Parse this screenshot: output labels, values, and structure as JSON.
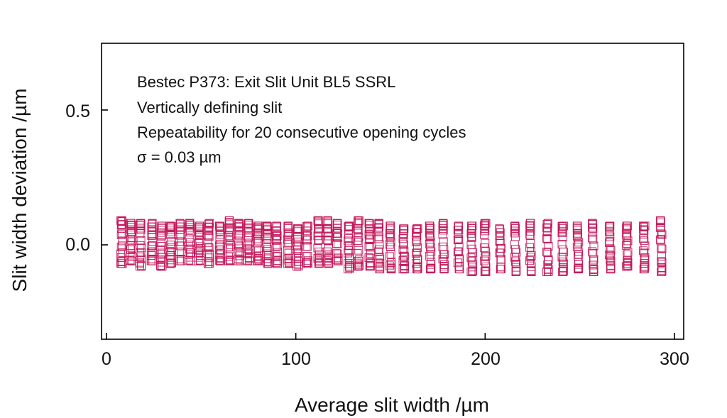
{
  "chart_data": {
    "type": "scatter",
    "marker": "open-square",
    "marker_color": "#c2185b",
    "xlabel": "Average slit width /µm",
    "ylabel": "Slit width deviation /µm",
    "xlim": [
      -3,
      305
    ],
    "ylim": [
      -0.35,
      0.75
    ],
    "xticks": [
      0,
      100,
      200,
      300
    ],
    "xtick_labels": [
      "0",
      "100",
      "200",
      "300"
    ],
    "yticks": [
      0.0,
      0.5
    ],
    "ytick_labels": [
      "0.0",
      "0.5"
    ],
    "grid": false,
    "legend": "none",
    "annotations": [
      "Bestec P373: Exit Slit Unit BL5 SSRL",
      "Vertically defining slit",
      "Repeatability for 20 consecutive opening cycles",
      "σ = 0.03 µm"
    ],
    "series": [
      {
        "x": [
          8,
          13,
          18,
          24,
          29,
          34,
          39,
          44,
          49,
          54,
          60,
          65,
          70,
          75,
          80,
          85,
          90,
          96,
          101,
          106,
          112,
          117,
          122,
          128,
          133,
          139,
          144,
          150,
          157,
          164,
          171,
          178,
          186,
          193,
          200,
          208,
          216,
          224,
          233,
          241,
          249,
          257,
          266,
          275,
          284,
          293
        ],
        "y_high": [
          0.09,
          0.08,
          0.08,
          0.08,
          0.07,
          0.07,
          0.08,
          0.08,
          0.07,
          0.08,
          0.07,
          0.09,
          0.08,
          0.08,
          0.07,
          0.07,
          0.07,
          0.07,
          0.06,
          0.07,
          0.09,
          0.09,
          0.08,
          0.07,
          0.09,
          0.08,
          0.08,
          0.07,
          0.06,
          0.06,
          0.07,
          0.08,
          0.07,
          0.07,
          0.08,
          0.06,
          0.07,
          0.08,
          0.08,
          0.07,
          0.07,
          0.08,
          0.07,
          0.07,
          0.07,
          0.09
        ],
        "y_low": [
          -0.07,
          -0.06,
          -0.08,
          -0.06,
          -0.08,
          -0.07,
          -0.06,
          -0.06,
          -0.06,
          -0.07,
          -0.06,
          -0.06,
          -0.06,
          -0.06,
          -0.06,
          -0.07,
          -0.07,
          -0.07,
          -0.08,
          -0.07,
          -0.07,
          -0.07,
          -0.06,
          -0.09,
          -0.08,
          -0.08,
          -0.09,
          -0.09,
          -0.09,
          -0.09,
          -0.09,
          -0.09,
          -0.09,
          -0.1,
          -0.1,
          -0.09,
          -0.1,
          -0.1,
          -0.1,
          -0.1,
          -0.09,
          -0.1,
          -0.09,
          -0.08,
          -0.09,
          -0.1
        ]
      }
    ]
  }
}
